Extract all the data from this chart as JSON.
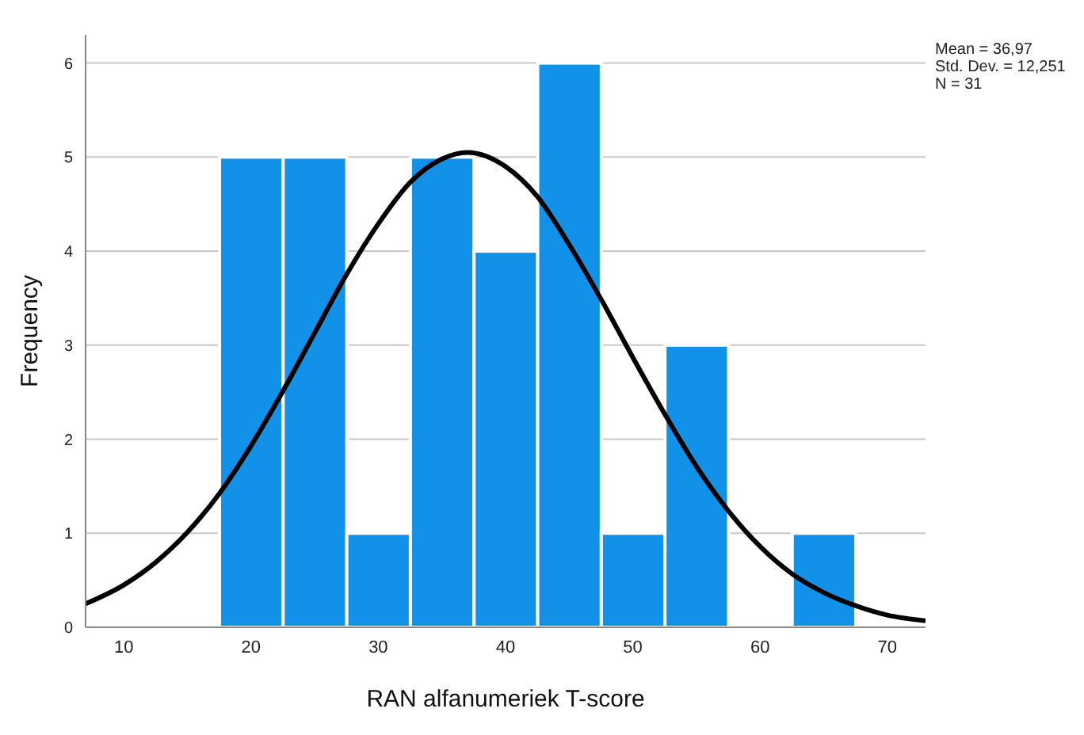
{
  "chart_data": {
    "type": "histogram",
    "xlabel": "RAN alfanumeriek T-score",
    "ylabel": "Frequency",
    "bins": [
      17.5,
      22.5,
      27.5,
      32.5,
      37.5,
      42.5,
      47.5,
      52.5,
      57.5,
      62.5,
      67.5
    ],
    "values": [
      5,
      5,
      1,
      5,
      4,
      6,
      1,
      3,
      0,
      1
    ],
    "color": "#1192e8",
    "series": [
      {
        "type": "line",
        "color": "#000000",
        "x": [
          7,
          10,
          12.5,
          15,
          17.5,
          20,
          22.5,
          25,
          27.5,
          30,
          32.5,
          35,
          37,
          40,
          42.5,
          45,
          47.5,
          50,
          52.5,
          55,
          57.5,
          60,
          62.5,
          65,
          67.5,
          70,
          73
        ],
        "values": [
          0.25,
          0.45,
          0.69,
          1.01,
          1.42,
          1.93,
          2.51,
          3.13,
          3.75,
          4.29,
          4.73,
          4.98,
          5.05,
          4.9,
          4.58,
          4.07,
          3.49,
          2.87,
          2.27,
          1.71,
          1.24,
          0.86,
          0.57,
          0.37,
          0.23,
          0.13,
          0.07
        ]
      }
    ],
    "xlim": [
      7,
      73
    ],
    "ylim": [
      0,
      6.3
    ],
    "xticks": [
      10,
      20,
      30,
      40,
      50,
      60,
      70
    ],
    "yticks": [
      0,
      1,
      2,
      3,
      4,
      5,
      6
    ],
    "grid": "y",
    "annotations": [
      "Mean = 36,97",
      "Std. Dev. = 12,251",
      "N = 31"
    ]
  }
}
